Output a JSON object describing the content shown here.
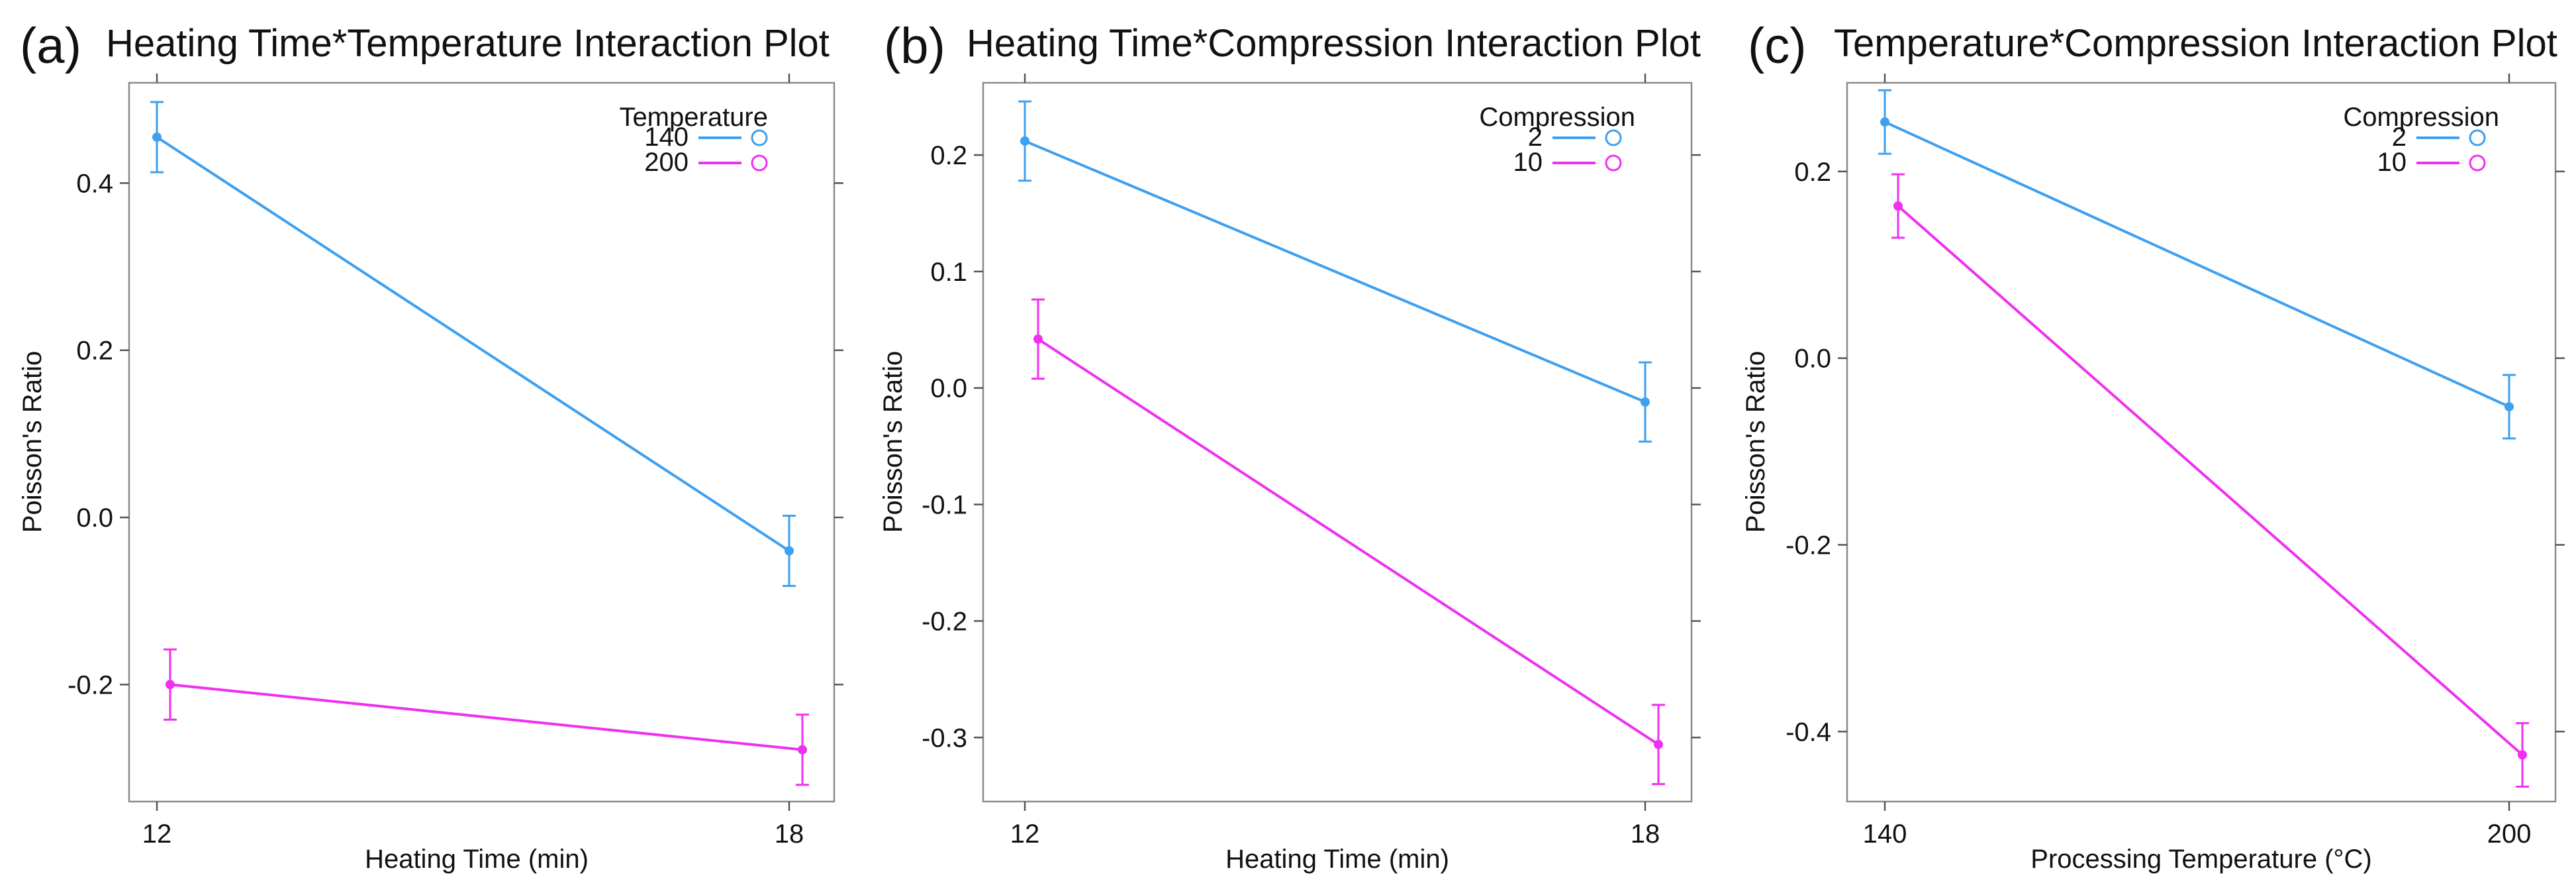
{
  "colors": {
    "series_a": "#3da0f0",
    "series_b": "#f030f0"
  },
  "chart_data": [
    {
      "type": "line",
      "label": "(a)",
      "title": "Heating Time*Temperature Interaction Plot",
      "xlabel": "Heating Time (min)",
      "ylabel": "Poisson's Ratio",
      "x_categories": [
        "12",
        "18"
      ],
      "ylim": [
        -0.34,
        0.52
      ],
      "yticks": [
        -0.2,
        0.0,
        0.2,
        0.4
      ],
      "ytick_labels": [
        "-0.2",
        "0.0",
        "0.2",
        "0.4"
      ],
      "legend_title": "Temperature",
      "series": [
        {
          "name": "140",
          "values": [
            0.455,
            -0.04
          ],
          "err": [
            0.042,
            0.042
          ]
        },
        {
          "name": "200",
          "values": [
            -0.2,
            -0.278
          ],
          "err": [
            0.042,
            0.042
          ]
        }
      ]
    },
    {
      "type": "line",
      "label": "(b)",
      "title": "Heating Time*Compression Interaction Plot",
      "xlabel": "Heating Time (min)",
      "ylabel": "Poisson's Ratio",
      "x_categories": [
        "12",
        "18"
      ],
      "ylim": [
        -0.355,
        0.262
      ],
      "yticks": [
        -0.3,
        -0.2,
        -0.1,
        0.0,
        0.1,
        0.2
      ],
      "ytick_labels": [
        "-0.3",
        "-0.2",
        "-0.1",
        "0.0",
        "0.1",
        "0.2"
      ],
      "legend_title": "Compression",
      "series": [
        {
          "name": "2",
          "values": [
            0.212,
            -0.012
          ],
          "err": [
            0.034,
            0.034
          ]
        },
        {
          "name": "10",
          "values": [
            0.042,
            -0.306
          ],
          "err": [
            0.034,
            0.034
          ]
        }
      ]
    },
    {
      "type": "line",
      "label": "(c)",
      "title": "Temperature*Compression Interaction Plot",
      "xlabel": "Processing Temperature (°C)",
      "ylabel": "Poisson's Ratio",
      "x_categories": [
        "140",
        "200"
      ],
      "ylim": [
        -0.475,
        0.295
      ],
      "yticks": [
        -0.4,
        -0.2,
        0.0,
        0.2
      ],
      "ytick_labels": [
        "-0.4",
        "-0.2",
        "0.0",
        "0.2"
      ],
      "legend_title": "Compression",
      "series": [
        {
          "name": "2",
          "values": [
            0.253,
            -0.052
          ],
          "err": [
            0.034,
            0.034
          ]
        },
        {
          "name": "10",
          "values": [
            0.163,
            -0.425
          ],
          "err": [
            0.034,
            0.034
          ]
        }
      ]
    }
  ]
}
